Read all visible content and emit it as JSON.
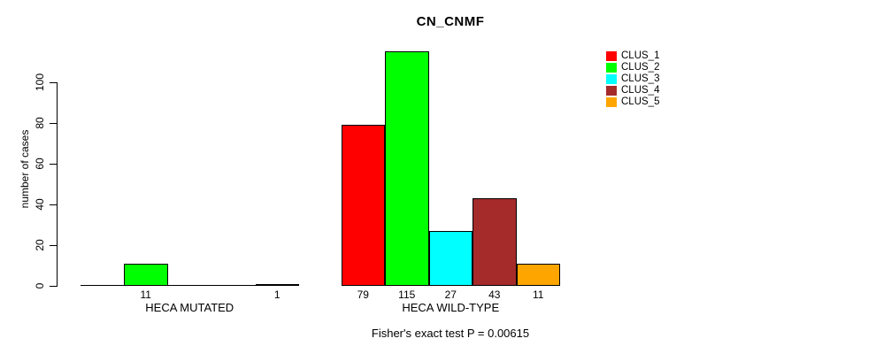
{
  "title": "CN_CNMF",
  "y_axis": {
    "label": "number of cases",
    "ticks": [
      0,
      20,
      40,
      60,
      80,
      100
    ]
  },
  "footer": {
    "stat_text": "Fisher's exact test P = 0.00615"
  },
  "legend": {
    "items": [
      {
        "label": "CLUS_1",
        "color": "#FF0000"
      },
      {
        "label": "CLUS_2",
        "color": "#00FF00"
      },
      {
        "label": "CLUS_3",
        "color": "#00FFFF"
      },
      {
        "label": "CLUS_4",
        "color": "#A52A2A"
      },
      {
        "label": "CLUS_5",
        "color": "#FFA500"
      }
    ]
  },
  "chart_data": {
    "type": "bar",
    "title": "CN_CNMF",
    "ylabel": "number of cases",
    "ylim": [
      0,
      115
    ],
    "yticks": [
      0,
      20,
      40,
      60,
      80,
      100
    ],
    "grid": false,
    "legend_position": "top-right-outside",
    "categories": [
      "HECA MUTATED",
      "HECA WILD-TYPE"
    ],
    "series": [
      {
        "name": "CLUS_1",
        "color": "#FF0000",
        "values": [
          0,
          79
        ]
      },
      {
        "name": "CLUS_2",
        "color": "#00FF00",
        "values": [
          11,
          115
        ]
      },
      {
        "name": "CLUS_3",
        "color": "#00FFFF",
        "values": [
          0,
          27
        ]
      },
      {
        "name": "CLUS_4",
        "color": "#A52A2A",
        "values": [
          0,
          43
        ]
      },
      {
        "name": "CLUS_5",
        "color": "#FFA500",
        "values": [
          1,
          11
        ]
      }
    ],
    "bar_value_labels_shown_for_nonzero_only": true,
    "annotation": "Fisher's exact test P = 0.00615"
  }
}
